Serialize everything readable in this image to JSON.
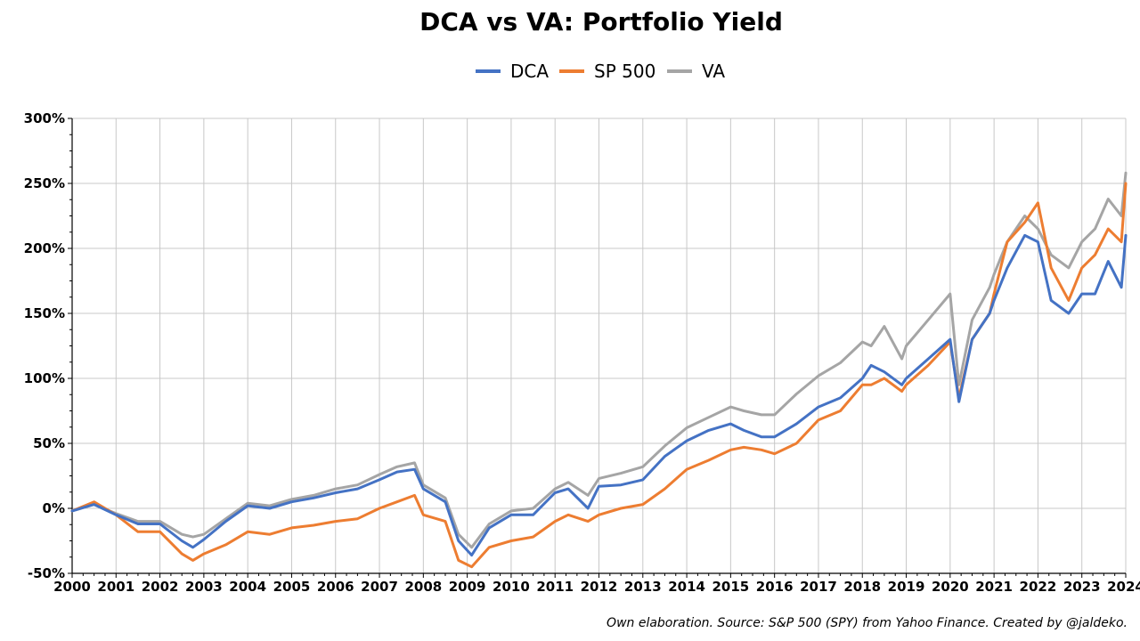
{
  "chart_data": {
    "type": "line",
    "title": "DCA vs VA: Portfolio Yield",
    "xlabel": "",
    "ylabel": "",
    "xlim": [
      2000,
      2024
    ],
    "ylim": [
      -50,
      300
    ],
    "y_unit": "%",
    "grid": true,
    "legend_position": "top-center",
    "x_ticks": [
      "2000",
      "2001",
      "2002",
      "2003",
      "2004",
      "2005",
      "2006",
      "2007",
      "2008",
      "2009",
      "2010",
      "2011",
      "2012",
      "2013",
      "2014",
      "2015",
      "2016",
      "2017",
      "2018",
      "2019",
      "2020",
      "2021",
      "2022",
      "2023",
      "2024"
    ],
    "y_ticks": [
      "-50%",
      "0%",
      "50%",
      "100%",
      "150%",
      "200%",
      "250%",
      "300%"
    ],
    "annotation": "Own elaboration. Source: S&P 500 (SPY) from Yahoo Finance. Created by @jaldeko.",
    "series": [
      {
        "name": "DCA",
        "color": "#4472c4",
        "x": [
          2000.0,
          2000.5,
          2001.0,
          2001.5,
          2002.0,
          2002.5,
          2002.75,
          2003.0,
          2003.5,
          2004.0,
          2004.5,
          2005.0,
          2005.5,
          2006.0,
          2006.5,
          2007.0,
          2007.4,
          2007.8,
          2008.0,
          2008.5,
          2008.8,
          2009.1,
          2009.5,
          2010.0,
          2010.5,
          2011.0,
          2011.3,
          2011.75,
          2012.0,
          2012.5,
          2013.0,
          2013.5,
          2014.0,
          2014.5,
          2015.0,
          2015.3,
          2015.7,
          2016.0,
          2016.5,
          2017.0,
          2017.5,
          2018.0,
          2018.2,
          2018.5,
          2018.9,
          2019.0,
          2019.5,
          2020.0,
          2020.2,
          2020.5,
          2020.9,
          2021.0,
          2021.3,
          2021.7,
          2022.0,
          2022.3,
          2022.7,
          2023.0,
          2023.3,
          2023.6,
          2023.9,
          2024.0
        ],
        "y": [
          -2,
          3,
          -5,
          -12,
          -12,
          -25,
          -30,
          -24,
          -10,
          2,
          0,
          5,
          8,
          12,
          15,
          22,
          28,
          30,
          15,
          5,
          -25,
          -36,
          -15,
          -5,
          -5,
          12,
          15,
          0,
          17,
          18,
          22,
          40,
          52,
          60,
          65,
          60,
          55,
          55,
          65,
          78,
          85,
          100,
          110,
          105,
          95,
          100,
          115,
          130,
          82,
          130,
          150,
          160,
          185,
          210,
          205,
          160,
          150,
          165,
          165,
          190,
          170,
          210
        ]
      },
      {
        "name": "SP 500",
        "color": "#ed7d31",
        "x": [
          2000.0,
          2000.5,
          2001.0,
          2001.5,
          2002.0,
          2002.5,
          2002.75,
          2003.0,
          2003.5,
          2004.0,
          2004.5,
          2005.0,
          2005.5,
          2006.0,
          2006.5,
          2007.0,
          2007.4,
          2007.8,
          2008.0,
          2008.5,
          2008.8,
          2009.1,
          2009.5,
          2010.0,
          2010.5,
          2011.0,
          2011.3,
          2011.75,
          2012.0,
          2012.5,
          2013.0,
          2013.5,
          2014.0,
          2014.5,
          2015.0,
          2015.3,
          2015.7,
          2016.0,
          2016.5,
          2017.0,
          2017.5,
          2018.0,
          2018.2,
          2018.5,
          2018.9,
          2019.0,
          2019.5,
          2020.0,
          2020.2,
          2020.5,
          2020.9,
          2021.0,
          2021.3,
          2021.7,
          2022.0,
          2022.3,
          2022.7,
          2023.0,
          2023.3,
          2023.6,
          2023.9,
          2024.0
        ],
        "y": [
          -2,
          5,
          -5,
          -18,
          -18,
          -35,
          -40,
          -35,
          -28,
          -18,
          -20,
          -15,
          -13,
          -10,
          -8,
          0,
          5,
          10,
          -5,
          -10,
          -40,
          -45,
          -30,
          -25,
          -22,
          -10,
          -5,
          -10,
          -5,
          0,
          3,
          15,
          30,
          37,
          45,
          47,
          45,
          42,
          50,
          68,
          75,
          95,
          95,
          100,
          90,
          95,
          110,
          128,
          85,
          130,
          150,
          165,
          205,
          220,
          235,
          185,
          160,
          185,
          195,
          215,
          205,
          250
        ]
      },
      {
        "name": "VA",
        "color": "#a5a5a5",
        "x": [
          2000.0,
          2000.5,
          2001.0,
          2001.5,
          2002.0,
          2002.5,
          2002.75,
          2003.0,
          2003.5,
          2004.0,
          2004.5,
          2005.0,
          2005.5,
          2006.0,
          2006.5,
          2007.0,
          2007.4,
          2007.8,
          2008.0,
          2008.5,
          2008.8,
          2009.1,
          2009.5,
          2010.0,
          2010.5,
          2011.0,
          2011.3,
          2011.75,
          2012.0,
          2012.5,
          2013.0,
          2013.5,
          2014.0,
          2014.5,
          2015.0,
          2015.3,
          2015.7,
          2016.0,
          2016.5,
          2017.0,
          2017.5,
          2018.0,
          2018.2,
          2018.5,
          2018.9,
          2019.0,
          2019.5,
          2020.0,
          2020.2,
          2020.5,
          2020.9,
          2021.0,
          2021.3,
          2021.7,
          2022.0,
          2022.3,
          2022.7,
          2023.0,
          2023.3,
          2023.6,
          2023.9,
          2024.0
        ],
        "y": [
          -2,
          3,
          -4,
          -10,
          -10,
          -20,
          -22,
          -20,
          -8,
          4,
          2,
          7,
          10,
          15,
          18,
          26,
          32,
          35,
          18,
          8,
          -20,
          -30,
          -12,
          -2,
          0,
          15,
          20,
          10,
          23,
          27,
          32,
          48,
          62,
          70,
          78,
          75,
          72,
          72,
          88,
          102,
          112,
          128,
          125,
          140,
          115,
          125,
          145,
          165,
          95,
          145,
          170,
          180,
          205,
          225,
          215,
          195,
          185,
          205,
          215,
          238,
          225,
          258
        ]
      }
    ]
  }
}
